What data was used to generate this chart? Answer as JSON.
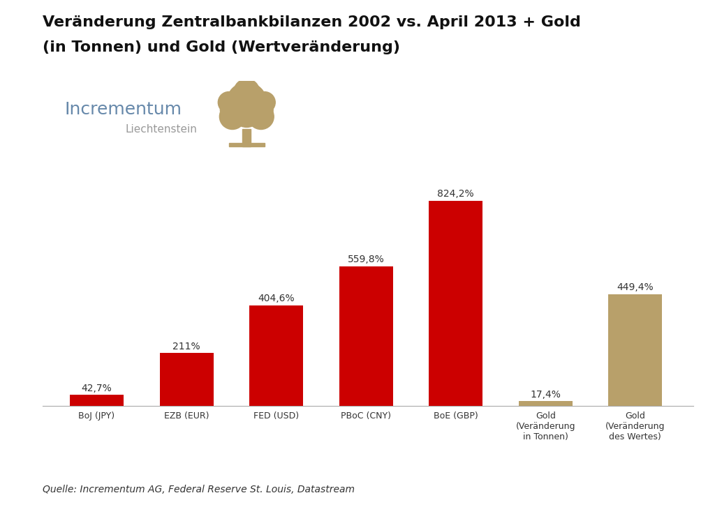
{
  "title_line1": "Veränderung Zentralbankbilanzen 2002 vs. April 2013 + Gold",
  "title_line2": "(in Tonnen) und Gold (Wertveränderung)",
  "categories": [
    "BoJ (JPY)",
    "EZB (EUR)",
    "FED (USD)",
    "PBoC (CNY)",
    "BoE (GBP)",
    "Gold\n(Veränderung\nin Tonnen)",
    "Gold\n(Veränderung\ndes Wertes)"
  ],
  "values": [
    42.7,
    211.0,
    404.6,
    559.8,
    824.2,
    17.4,
    449.4
  ],
  "labels": [
    "42,7%",
    "211%",
    "404,6%",
    "559,8%",
    "824,2%",
    "17,4%",
    "449,4%"
  ],
  "bar_colors": [
    "#cc0000",
    "#cc0000",
    "#cc0000",
    "#cc0000",
    "#cc0000",
    "#b8a06a",
    "#b8a06a"
  ],
  "source_text": "Quelle: Incrementum AG, Federal Reserve St. Louis, Datastream",
  "background_color": "#ffffff",
  "incrementum_color": "#6688aa",
  "liechtenstein_color": "#999999",
  "tree_color": "#b8a06a",
  "title_fontsize": 16,
  "label_fontsize": 10,
  "tick_fontsize": 9,
  "source_fontsize": 10
}
